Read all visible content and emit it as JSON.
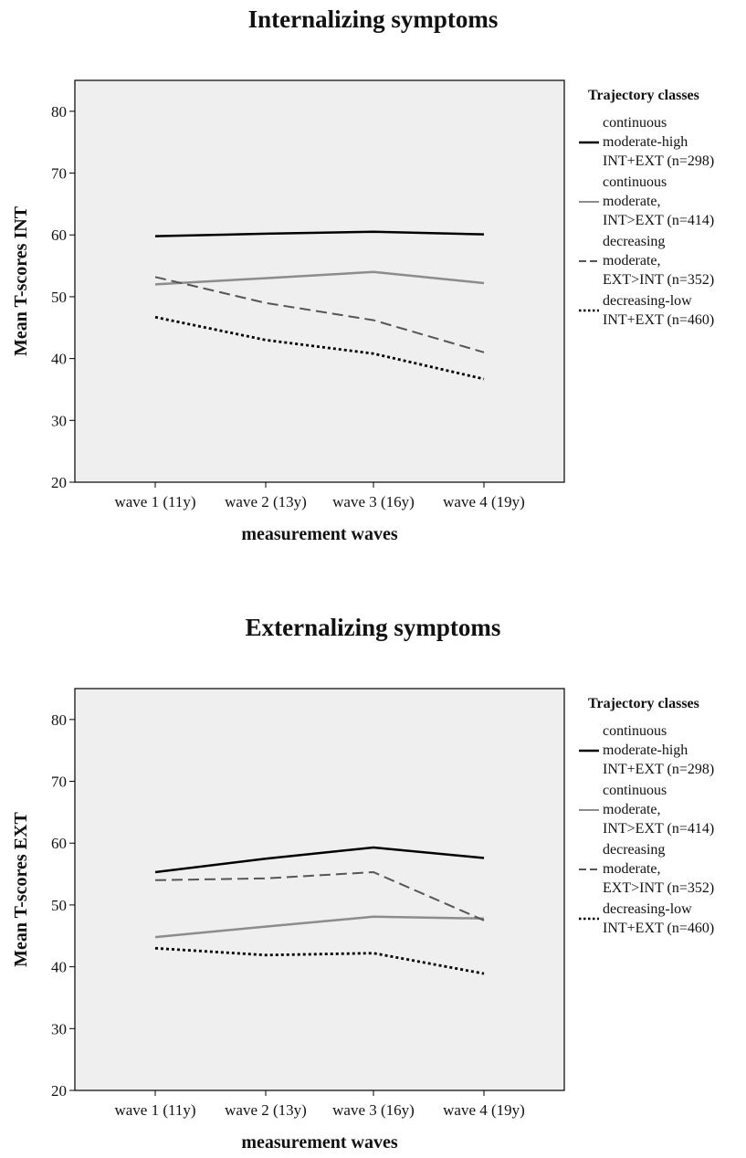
{
  "chart_data": [
    {
      "type": "line",
      "title": "Internalizing symptoms",
      "xlabel": "measurement waves",
      "ylabel": "Mean T-scores INT",
      "categories": [
        "wave 1 (11y)",
        "wave 2 (13y)",
        "wave 3 (16y)",
        "wave 4 (19y)"
      ],
      "ylim": [
        20,
        85
      ],
      "yticks": [
        "20",
        "30",
        "40",
        "50",
        "60",
        "70",
        "80"
      ],
      "legend_title": "Trajectory classes",
      "legend_position": "right",
      "series": [
        {
          "name": "continuous\nmoderate-high\nINT+EXT (n=298)",
          "values": [
            59.8,
            60.2,
            60.5,
            60.1
          ],
          "color": "#000000",
          "style": "solid"
        },
        {
          "name": "continuous\nmoderate,\nINT>EXT (n=414)",
          "values": [
            52.0,
            53.0,
            54.0,
            52.2
          ],
          "color": "#8c8c8c",
          "style": "solid"
        },
        {
          "name": "decreasing\nmoderate,\nEXT>INT (n=352)",
          "values": [
            53.2,
            49.0,
            46.2,
            41.0
          ],
          "color": "#555555",
          "style": "dashed"
        },
        {
          "name": "decreasing-low\nINT+EXT (n=460)",
          "values": [
            46.7,
            43.0,
            40.8,
            36.7
          ],
          "color": "#000000",
          "style": "dotted"
        }
      ]
    },
    {
      "type": "line",
      "title": "Externalizing symptoms",
      "xlabel": "measurement waves",
      "ylabel": "Mean T-scores EXT",
      "categories": [
        "wave 1 (11y)",
        "wave 2 (13y)",
        "wave 3 (16y)",
        "wave 4 (19y)"
      ],
      "ylim": [
        20,
        85
      ],
      "yticks": [
        "20",
        "30",
        "40",
        "50",
        "60",
        "70",
        "80"
      ],
      "legend_title": "Trajectory classes",
      "legend_position": "right",
      "series": [
        {
          "name": "continuous\nmoderate-high\nINT+EXT (n=298)",
          "values": [
            55.3,
            57.5,
            59.3,
            57.6
          ],
          "color": "#000000",
          "style": "solid"
        },
        {
          "name": "continuous\nmoderate,\nINT>EXT (n=414)",
          "values": [
            44.8,
            46.5,
            48.1,
            47.8
          ],
          "color": "#8c8c8c",
          "style": "solid"
        },
        {
          "name": "decreasing\nmoderate,\nEXT>INT (n=352)",
          "values": [
            54.0,
            54.3,
            55.3,
            47.5
          ],
          "color": "#555555",
          "style": "dashed"
        },
        {
          "name": "decreasing-low\nINT+EXT (n=460)",
          "values": [
            43.0,
            41.9,
            42.2,
            38.9
          ],
          "color": "#000000",
          "style": "dotted"
        }
      ]
    }
  ]
}
